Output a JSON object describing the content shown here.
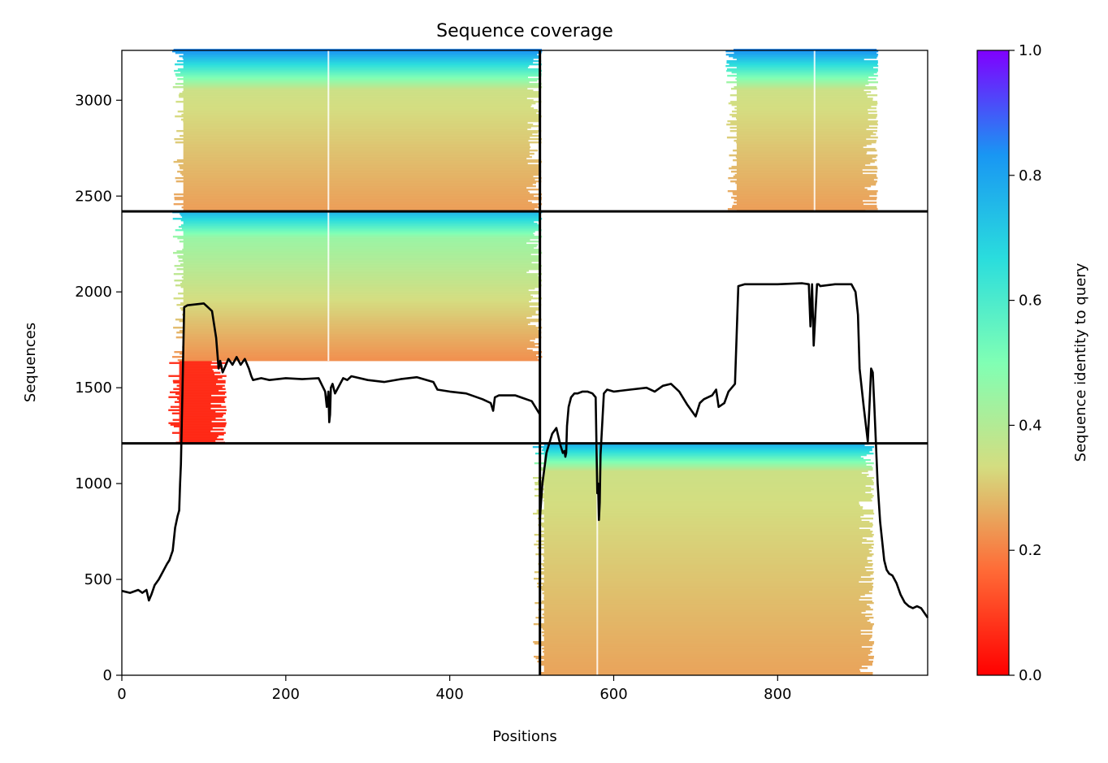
{
  "chart_data": {
    "type": "heatmap",
    "title": "Sequence coverage",
    "xlabel": "Positions",
    "ylabel": "Sequences",
    "xlim": [
      0,
      983
    ],
    "ylim": [
      0,
      3260
    ],
    "xticks": [
      0,
      200,
      400,
      600,
      800
    ],
    "yticks": [
      0,
      500,
      1000,
      1500,
      2000,
      2500,
      3000
    ],
    "grid": false,
    "colorbar": {
      "label": "Sequence identity to query",
      "range": [
        0,
        1
      ],
      "ticks": [
        0.0,
        0.2,
        0.4,
        0.6,
        0.8,
        1.0
      ],
      "tick_labels": [
        "0.0",
        "0.2",
        "0.4",
        "0.6",
        "0.8",
        "1.0"
      ],
      "colormap": "rainbow_r",
      "stops": [
        "#ff0000",
        "#ff6a36",
        "#d4dd80",
        "#80ffb4",
        "#2adddd",
        "#1996f3",
        "#8000ff"
      ]
    },
    "chain_boundaries_x": [
      510
    ],
    "block_boundaries_y": [
      1210,
      2420
    ],
    "blocks": [
      {
        "x": [
          510,
          983
        ],
        "y": [
          0,
          1210
        ],
        "x_cov": [
          515,
          915
        ],
        "identity_bottom": 0.25,
        "identity_mid": 0.35,
        "identity_top": 0.8,
        "mid_rows": 1060,
        "gap_x": 580
      },
      {
        "x": [
          0,
          510
        ],
        "y": [
          1210,
          1640
        ],
        "x_cov": [
          70,
          125
        ],
        "identity_bottom": 0.06,
        "identity_mid": 0.07,
        "identity_top": 0.08,
        "mid_rows": 1640,
        "gap_x": null
      },
      {
        "x": [
          0,
          510
        ],
        "y": [
          1640,
          2420
        ],
        "x_cov": [
          75,
          510
        ],
        "identity_bottom": 0.22,
        "identity_mid": 0.45,
        "identity_top": 0.78,
        "mid_rows": 2280,
        "gap_x": 252
      },
      {
        "x": [
          0,
          510
        ],
        "y": [
          2420,
          3260
        ],
        "x_cov": [
          75,
          510
        ],
        "identity_bottom": 0.24,
        "identity_mid": 0.35,
        "identity_top": 0.85,
        "mid_rows": 3050,
        "gap_x": 252
      },
      {
        "x": [
          510,
          983
        ],
        "y": [
          2420,
          3260
        ],
        "x_cov": [
          750,
          920
        ],
        "identity_bottom": 0.24,
        "identity_mid": 0.35,
        "identity_top": 0.85,
        "mid_rows": 3050,
        "gap_x": 845
      }
    ],
    "series": [
      {
        "x": [
          0,
          10,
          20,
          25,
          30,
          33,
          36,
          40,
          45,
          50,
          55,
          58,
          62,
          65,
          68,
          70,
          71,
          72,
          73,
          74,
          76,
          80,
          90,
          100,
          110,
          115,
          118,
          120,
          123,
          126,
          130,
          135,
          140,
          145,
          150,
          155,
          158,
          160,
          170,
          180,
          200,
          220,
          240,
          248,
          250,
          252,
          253,
          254,
          255,
          257,
          260,
          270,
          275,
          280,
          300,
          320,
          340,
          360,
          380,
          385,
          400,
          420,
          440,
          450,
          453,
          455,
          460,
          480,
          500,
          510
        ],
        "values": [
          440,
          430,
          445,
          430,
          445,
          390,
          420,
          470,
          500,
          540,
          580,
          600,
          650,
          770,
          830,
          860,
          1000,
          1100,
          1300,
          1500,
          1920,
          1930,
          1935,
          1940,
          1900,
          1760,
          1600,
          1640,
          1580,
          1610,
          1650,
          1620,
          1660,
          1620,
          1650,
          1600,
          1560,
          1540,
          1550,
          1540,
          1550,
          1545,
          1550,
          1480,
          1400,
          1480,
          1320,
          1360,
          1500,
          1520,
          1470,
          1550,
          1540,
          1560,
          1540,
          1530,
          1545,
          1555,
          1530,
          1490,
          1480,
          1470,
          1440,
          1420,
          1380,
          1450,
          1460,
          1460,
          1430,
          1360
        ]
      },
      {
        "x": [
          510,
          513,
          518,
          525,
          530,
          535,
          538,
          540,
          541,
          542,
          543,
          545,
          548,
          552,
          556,
          562,
          568,
          574,
          578,
          579,
          580,
          581,
          582,
          583,
          584,
          588,
          592,
          600,
          620,
          640,
          650,
          660,
          670,
          680,
          690,
          695,
          700,
          705,
          710,
          720,
          725,
          728,
          735,
          740,
          748,
          752,
          760,
          800,
          830,
          838,
          840,
          842,
          844,
          846,
          848,
          850,
          852,
          870,
          890,
          895,
          898,
          900,
          905,
          910,
          912,
          914,
          916,
          918,
          920,
          922,
          925,
          930,
          933,
          936,
          940,
          945,
          950,
          955,
          960,
          965,
          970,
          975,
          983
        ],
        "values": [
          820,
          1000,
          1160,
          1260,
          1290,
          1200,
          1160,
          1170,
          1140,
          1160,
          1300,
          1400,
          1450,
          1470,
          1470,
          1480,
          1480,
          1470,
          1450,
          1200,
          950,
          1000,
          810,
          900,
          1150,
          1470,
          1490,
          1480,
          1490,
          1500,
          1480,
          1510,
          1520,
          1480,
          1410,
          1380,
          1350,
          1420,
          1440,
          1460,
          1490,
          1400,
          1420,
          1480,
          1520,
          2030,
          2040,
          2040,
          2045,
          2040,
          1820,
          2040,
          1720,
          1880,
          2040,
          2040,
          2030,
          2040,
          2040,
          2000,
          1880,
          1600,
          1400,
          1220,
          1400,
          1600,
          1580,
          1400,
          1200,
          1000,
          800,
          600,
          550,
          530,
          520,
          480,
          420,
          380,
          360,
          350,
          360,
          350,
          300
        ]
      }
    ]
  }
}
